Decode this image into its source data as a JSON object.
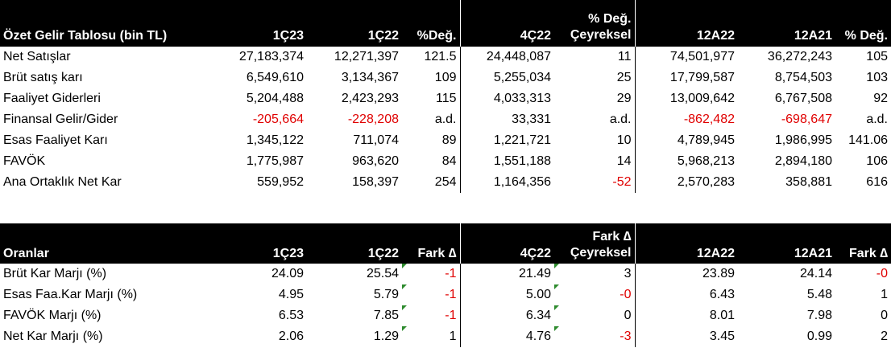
{
  "income_table": {
    "headers": [
      "Özet Gelir Tablosu (bin TL)",
      "1Ç23",
      "1Ç22",
      "%Değ.",
      "4Ç22",
      "% Değ.\nÇeyreksel",
      "12A22",
      "12A21",
      "% Değ."
    ],
    "header_ceyreksel_top": "% Değ.",
    "header_ceyreksel_bottom": "Çeyreksel",
    "rows": [
      {
        "label": "Net Satışlar",
        "q123": "27,183,374",
        "q122": "12,271,397",
        "chg": "121.5",
        "q422": "24,448,087",
        "qchg": "11",
        "a22": "74,501,977",
        "a21": "36,272,243",
        "achg": "105"
      },
      {
        "label": "Brüt satış karı",
        "q123": "6,549,610",
        "q122": "3,134,367",
        "chg": "109",
        "q422": "5,255,034",
        "qchg": "25",
        "a22": "17,799,587",
        "a21": "8,754,503",
        "achg": "103"
      },
      {
        "label": "Faaliyet Giderleri",
        "q123": "5,204,488",
        "q122": "2,423,293",
        "chg": "115",
        "q422": "4,033,313",
        "qchg": "29",
        "a22": "13,009,642",
        "a21": "6,767,508",
        "achg": "92"
      },
      {
        "label": "Finansal Gelir/Gider",
        "q123": "-205,664",
        "q122": "-228,208",
        "chg": "a.d.",
        "q422": "33,331",
        "qchg": "a.d.",
        "a22": "-862,482",
        "a21": "-698,647",
        "achg": "a.d."
      },
      {
        "label": "Esas Faaliyet Karı",
        "q123": "1,345,122",
        "q122": "711,074",
        "chg": "89",
        "q422": "1,221,721",
        "qchg": "10",
        "a22": "4,789,945",
        "a21": "1,986,995",
        "achg": "141.06"
      },
      {
        "label": "FAVÖK",
        "q123": "1,775,987",
        "q122": "963,620",
        "chg": "84",
        "q422": "1,551,188",
        "qchg": "14",
        "a22": "5,968,213",
        "a21": "2,894,180",
        "achg": "106"
      },
      {
        "label": "Ana Ortaklık Net Kar",
        "q123": "559,952",
        "q122": "158,397",
        "chg": "254",
        "q422": "1,164,356",
        "qchg": "-52",
        "a22": "2,570,283",
        "a21": "358,881",
        "achg": "616"
      }
    ]
  },
  "ratio_table": {
    "headers": [
      "Oranlar",
      "1Ç23",
      "1Ç22",
      "Fark ∆",
      "4Ç22",
      "Fark ∆\nÇeyreksel",
      "12A22",
      "12A21",
      "Fark ∆"
    ],
    "header_ceyreksel_top": "Fark ∆",
    "header_ceyreksel_bottom": "Çeyreksel",
    "rows": [
      {
        "label": "Brüt Kar Marjı (%)",
        "q123": "24.09",
        "q122": "25.54",
        "chg": "-1",
        "q422": "21.49",
        "qchg": "3",
        "a22": "23.89",
        "a21": "24.14",
        "achg": "-0"
      },
      {
        "label": "Esas Faa.Kar Marjı (%)",
        "q123": "4.95",
        "q122": "5.79",
        "chg": "-1",
        "q422": "5.00",
        "qchg": "-0",
        "a22": "6.43",
        "a21": "5.48",
        "achg": "1"
      },
      {
        "label": "FAVÖK Marjı (%)",
        "q123": "6.53",
        "q122": "7.85",
        "chg": "-1",
        "q422": "6.34",
        "qchg": "0",
        "a22": "8.01",
        "a21": "7.98",
        "achg": "0"
      },
      {
        "label": "Net Kar Marjı (%)",
        "q123": "2.06",
        "q122": "1.29",
        "chg": "1",
        "q422": "4.76",
        "qchg": "-3",
        "a22": "3.45",
        "a21": "0.99",
        "achg": "2"
      }
    ]
  },
  "colors": {
    "header_bg": "#000000",
    "header_text": "#ffffff",
    "negative": "#e00000",
    "comment_marker": "#2e8b2e"
  }
}
